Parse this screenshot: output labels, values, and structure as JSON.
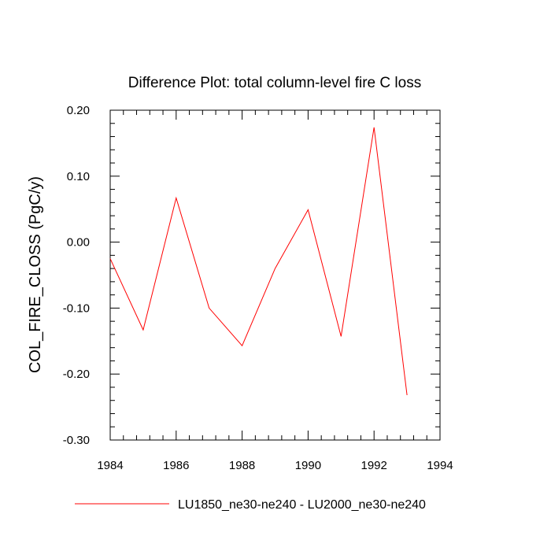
{
  "chart_data": {
    "type": "line",
    "title": "Difference Plot: total column-level fire C loss",
    "xlabel": "",
    "ylabel": "COL_FIRE_CLOSS  (PgC/y)",
    "xlim": [
      1984,
      1994
    ],
    "ylim": [
      -0.3,
      0.2
    ],
    "x_ticks": [
      1984,
      1986,
      1988,
      1990,
      1992,
      1994
    ],
    "x_tick_labels": [
      "1984",
      "1986",
      "1988",
      "1990",
      "1992",
      "1994"
    ],
    "y_ticks": [
      0.2,
      0.1,
      0.0,
      -0.1,
      -0.2,
      -0.3
    ],
    "y_tick_labels": [
      "0.20",
      "0.10",
      "0.00",
      "-0.10",
      "-0.20",
      "-0.30"
    ],
    "grid": false,
    "legend_position": "bottom",
    "series": [
      {
        "name": "LU1850_ne30-ne240 - LU2000_ne30-ne240",
        "color": "#ff0000",
        "x": [
          1984,
          1985,
          1986,
          1987,
          1988,
          1989,
          1990,
          1991,
          1992,
          1993
        ],
        "y": [
          -0.025,
          -0.133,
          0.067,
          -0.1,
          -0.157,
          -0.04,
          0.049,
          -0.143,
          0.174,
          -0.232
        ]
      }
    ]
  }
}
